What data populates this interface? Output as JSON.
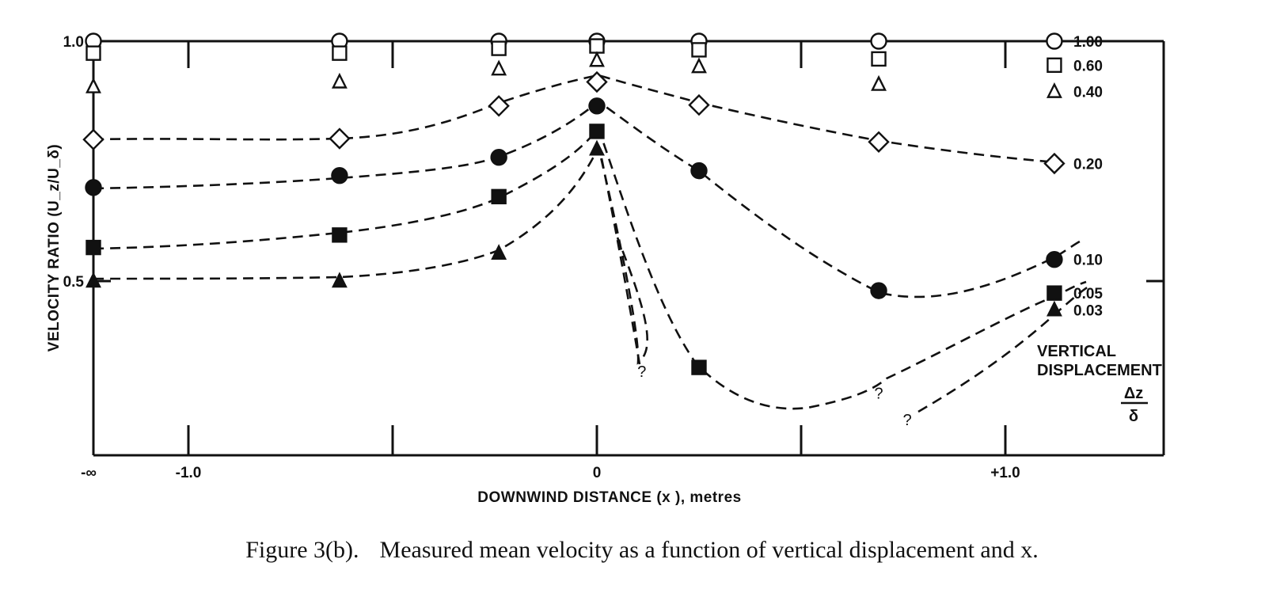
{
  "caption": {
    "label": "Figure 3(b).",
    "text": "Measured mean velocity as a function of vertical displacement and x."
  },
  "chart_data": {
    "type": "line",
    "title": "",
    "xlabel": "DOWNWIND DISTANCE (x  ), metres",
    "ylabel": "VELOCITY RATIO (U_z/U_δ)",
    "ylim": [
      0.0,
      1.0
    ],
    "x_ticks": [
      {
        "value": "-inf",
        "label": "-∞"
      },
      {
        "value": -1.0,
        "label": "-1.0"
      },
      {
        "value": 0,
        "label": "0"
      },
      {
        "value": 1.0,
        "label": "+1.0"
      }
    ],
    "y_ticks": [
      {
        "value": 1.0,
        "label": "1.0"
      },
      {
        "value": 0.5,
        "label": "0.5"
      }
    ],
    "legend_title": [
      "VERTICAL",
      "DISPLACEMENT"
    ],
    "legend_symbol": {
      "numerator": "Δz",
      "denominator": "δ"
    },
    "series": [
      {
        "name": "1.00",
        "marker": "circle-open",
        "dashed": false,
        "points": [
          [
            "-inf",
            1.0
          ],
          [
            -0.63,
            1.0
          ],
          [
            -0.24,
            1.0
          ],
          [
            0,
            1.0
          ],
          [
            0.25,
            1.0
          ],
          [
            0.69,
            1.0
          ],
          [
            1.12,
            1.0
          ]
        ]
      },
      {
        "name": "0.60",
        "marker": "square-open",
        "dashed": false,
        "points": [
          [
            "-inf",
            0.975
          ],
          [
            -0.63,
            0.975
          ],
          [
            -0.24,
            0.985
          ],
          [
            0,
            0.99
          ],
          [
            0.25,
            0.982
          ],
          [
            0.69,
            0.963
          ],
          [
            1.12,
            0.95
          ]
        ]
      },
      {
        "name": "0.40",
        "marker": "triangle-open",
        "dashed": false,
        "points": [
          [
            "-inf",
            0.905
          ],
          [
            -0.63,
            0.915
          ],
          [
            -0.24,
            0.942
          ],
          [
            0,
            0.96
          ],
          [
            0.25,
            0.947
          ],
          [
            0.69,
            0.91
          ],
          [
            1.12,
            0.895
          ]
        ]
      },
      {
        "name": "0.20",
        "marker": "diamond-open",
        "dashed": true,
        "points": [
          [
            "-inf",
            0.795
          ],
          [
            -0.63,
            0.797
          ],
          [
            -0.24,
            0.865
          ],
          [
            0,
            0.915
          ],
          [
            0.25,
            0.867
          ],
          [
            0.69,
            0.79
          ],
          [
            1.12,
            0.745
          ]
        ]
      },
      {
        "name": "0.10",
        "marker": "circle-filled",
        "dashed": true,
        "points": [
          [
            "-inf",
            0.695
          ],
          [
            -0.63,
            0.72
          ],
          [
            -0.24,
            0.758
          ],
          [
            0,
            0.865
          ],
          [
            0.25,
            0.73
          ],
          [
            0.69,
            0.48
          ],
          [
            1.12,
            0.545
          ]
        ]
      },
      {
        "name": "0.05",
        "marker": "square-filled",
        "dashed": true,
        "points": [
          [
            "-inf",
            0.57
          ],
          [
            -0.63,
            0.596
          ],
          [
            -0.24,
            0.676
          ],
          [
            0,
            0.812
          ],
          [
            0.25,
            0.32
          ],
          [
            1.12,
            0.475
          ]
        ]
      },
      {
        "name": "0.03",
        "marker": "triangle-filled",
        "dashed": true,
        "points": [
          [
            "-inf",
            0.5
          ],
          [
            -0.63,
            0.5
          ],
          [
            -0.24,
            0.558
          ],
          [
            0,
            0.775
          ],
          [
            1.12,
            0.44
          ]
        ]
      }
    ],
    "question_marks": [
      {
        "x": 0.11,
        "y": 0.3,
        "label": "?"
      },
      {
        "x": 0.69,
        "y": 0.255,
        "label": "?"
      },
      {
        "x": 0.76,
        "y": 0.2,
        "label": "?"
      }
    ]
  }
}
